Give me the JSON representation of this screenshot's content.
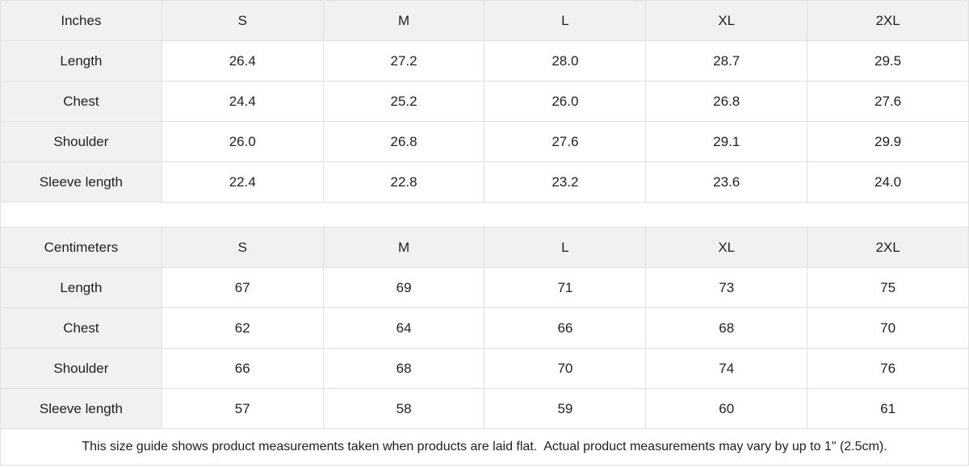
{
  "theme": {
    "header_bg": "#f1f1f1",
    "border_color": "#e0e0e0",
    "text_color": "#1f1f1f",
    "background": "#ffffff"
  },
  "tables": [
    {
      "unit_label": "Inches",
      "sizes": [
        "S",
        "M",
        "L",
        "XL",
        "2XL"
      ],
      "rows": [
        {
          "label": "Length",
          "values": [
            "26.4",
            "27.2",
            "28.0",
            "28.7",
            "29.5"
          ]
        },
        {
          "label": "Chest",
          "values": [
            "24.4",
            "25.2",
            "26.0",
            "26.8",
            "27.6"
          ]
        },
        {
          "label": "Shoulder",
          "values": [
            "26.0",
            "26.8",
            "27.6",
            "29.1",
            "29.9"
          ]
        },
        {
          "label": "Sleeve length",
          "values": [
            "22.4",
            "22.8",
            "23.2",
            "23.6",
            "24.0"
          ]
        }
      ]
    },
    {
      "unit_label": "Centimeters",
      "sizes": [
        "S",
        "M",
        "L",
        "XL",
        "2XL"
      ],
      "rows": [
        {
          "label": "Length",
          "values": [
            "67",
            "69",
            "71",
            "73",
            "75"
          ]
        },
        {
          "label": "Chest",
          "values": [
            "62",
            "64",
            "66",
            "68",
            "70"
          ]
        },
        {
          "label": "Shoulder",
          "values": [
            "66",
            "68",
            "70",
            "74",
            "76"
          ]
        },
        {
          "label": "Sleeve length",
          "values": [
            "57",
            "58",
            "59",
            "60",
            "61"
          ]
        }
      ]
    }
  ],
  "footnote": "This size guide shows product measurements taken when products are laid flat.  Actual product measurements may vary by up to 1\" (2.5cm)."
}
